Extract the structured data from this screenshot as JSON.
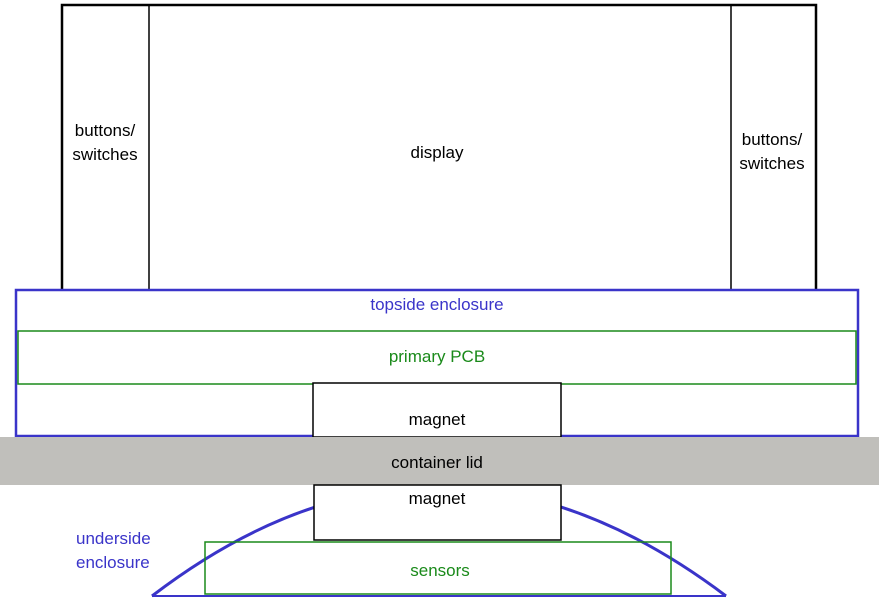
{
  "labels": {
    "display": "display",
    "buttons_left_line1": "buttons/",
    "buttons_left_line2": "switches",
    "buttons_right_line1": "buttons/",
    "buttons_right_line2": "switches",
    "topside_enclosure": "topside enclosure",
    "primary_pcb": "primary PCB",
    "magnet_top": "magnet",
    "container_lid": "container lid",
    "magnet_bottom": "magnet",
    "underside_line1": "underside",
    "underside_line2": "enclosure",
    "sensors": "sensors"
  },
  "colors": {
    "black": "#000000",
    "enclosure_blue": "#3a34c9",
    "pcb_green": "#1a8a1a",
    "lid_gray": "#c0bfbb",
    "text_black": "#000000",
    "text_blue": "#3a34c9",
    "text_green": "#1a8a1a"
  }
}
